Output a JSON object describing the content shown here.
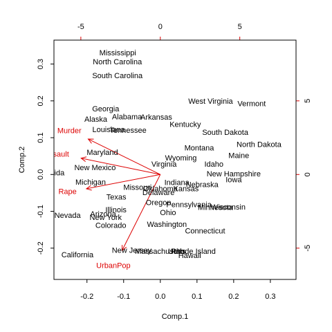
{
  "chart_data": {
    "type": "scatter",
    "subtype": "pca-biplot",
    "title": "",
    "xlabel": "Comp.1",
    "ylabel": "Comp.2",
    "xlim": [
      -0.29,
      0.37
    ],
    "ylim": [
      -0.285,
      0.365
    ],
    "x_ticks": [
      -0.2,
      -0.1,
      0.0,
      0.1,
      0.2,
      0.3
    ],
    "x_tick_labels": [
      "-0.2",
      "-0.1",
      "0.0",
      "0.1",
      "0.2",
      "0.3"
    ],
    "y_ticks": [
      -0.2,
      -0.1,
      0.0,
      0.1,
      0.2,
      0.3
    ],
    "y_tick_labels": [
      "-0.2",
      "-0.1",
      "0.0",
      "0.1",
      "0.2",
      "0.3"
    ],
    "secondary_axes": {
      "color": "#dd0000",
      "x_top_ticks": [
        -0.21667,
        0.0,
        0.21667
      ],
      "x_top_labels": [
        "-5",
        "0",
        "5"
      ],
      "y_right_ticks": [
        -0.2,
        0.0,
        0.2
      ],
      "y_right_labels": [
        "-5",
        "0",
        "5"
      ]
    },
    "grid": false,
    "observation_color": "#000000",
    "loading_color": "#dd0000",
    "observations": [
      {
        "label": "Mississippi",
        "x": -0.116,
        "y": 0.329
      },
      {
        "label": "North Carolina",
        "x": -0.117,
        "y": 0.305
      },
      {
        "label": "South Carolina",
        "x": -0.117,
        "y": 0.267
      },
      {
        "label": "West Virginia",
        "x": 0.137,
        "y": 0.198
      },
      {
        "label": "Vermont",
        "x": 0.249,
        "y": 0.191
      },
      {
        "label": "Georgia",
        "x": -0.149,
        "y": 0.177
      },
      {
        "label": "Alabama",
        "x": -0.091,
        "y": 0.155
      },
      {
        "label": "Arkansas",
        "x": -0.011,
        "y": 0.154
      },
      {
        "label": "Alaska",
        "x": -0.176,
        "y": 0.149
      },
      {
        "label": "Kentucky",
        "x": 0.068,
        "y": 0.135
      },
      {
        "label": "Louisiana",
        "x": -0.141,
        "y": 0.121
      },
      {
        "label": "Tennessee",
        "x": -0.088,
        "y": 0.119
      },
      {
        "label": "South Dakota",
        "x": 0.177,
        "y": 0.113
      },
      {
        "label": "North Dakota",
        "x": 0.269,
        "y": 0.08
      },
      {
        "label": "Montana",
        "x": 0.106,
        "y": 0.071
      },
      {
        "label": "Maine",
        "x": 0.214,
        "y": 0.05
      },
      {
        "label": "Maryland",
        "x": -0.158,
        "y": 0.059
      },
      {
        "label": "Wyoming",
        "x": 0.056,
        "y": 0.044
      },
      {
        "label": "Virginia",
        "x": 0.01,
        "y": 0.027
      },
      {
        "label": "Idaho",
        "x": 0.146,
        "y": 0.027
      },
      {
        "label": "New Mexico",
        "x": -0.178,
        "y": 0.017
      },
      {
        "label": "Florida",
        "x": -0.293,
        "y": 0.003
      },
      {
        "label": "New Hampshire",
        "x": 0.2,
        "y": 0.0
      },
      {
        "label": "Iowa",
        "x": 0.2,
        "y": -0.016
      },
      {
        "label": "Michigan",
        "x": -0.19,
        "y": -0.022
      },
      {
        "label": "Indiana",
        "x": 0.045,
        "y": -0.023
      },
      {
        "label": "Nebraska",
        "x": 0.114,
        "y": -0.029
      },
      {
        "label": "Missouri",
        "x": -0.062,
        "y": -0.036
      },
      {
        "label": "Oklahoma",
        "x": 0.0,
        "y": -0.04
      },
      {
        "label": "Kansas",
        "x": 0.07,
        "y": -0.04
      },
      {
        "label": "Delaware",
        "x": -0.005,
        "y": -0.05
      },
      {
        "label": "Texas",
        "x": -0.12,
        "y": -0.063
      },
      {
        "label": "Oregon",
        "x": -0.005,
        "y": -0.078
      },
      {
        "label": "Pennsylvania",
        "x": 0.078,
        "y": -0.083
      },
      {
        "label": "Wisconsin",
        "x": 0.185,
        "y": -0.09
      },
      {
        "label": "Minnesota",
        "x": 0.15,
        "y": -0.091
      },
      {
        "label": "Illinois",
        "x": -0.121,
        "y": -0.097
      },
      {
        "label": "Ohio",
        "x": 0.021,
        "y": -0.105
      },
      {
        "label": "Arizona",
        "x": -0.156,
        "y": -0.109
      },
      {
        "label": "Nevada",
        "x": -0.253,
        "y": -0.112
      },
      {
        "label": "New York",
        "x": -0.149,
        "y": -0.118
      },
      {
        "label": "Colorado",
        "x": -0.135,
        "y": -0.14
      },
      {
        "label": "Washington",
        "x": 0.018,
        "y": -0.137
      },
      {
        "label": "Connecticut",
        "x": 0.122,
        "y": -0.155
      },
      {
        "label": "New Jersey",
        "x": -0.078,
        "y": -0.207
      },
      {
        "label": "Massachusetts",
        "x": 0.0,
        "y": -0.21
      },
      {
        "label": "Rhode Island",
        "x": 0.09,
        "y": -0.21
      },
      {
        "label": "Utah",
        "x": 0.043,
        "y": -0.21
      },
      {
        "label": "Hawaii",
        "x": 0.08,
        "y": -0.221
      },
      {
        "label": "California",
        "x": -0.226,
        "y": -0.219
      }
    ],
    "loadings": [
      {
        "label": "Murder",
        "x": -0.1966,
        "y": 0.0963,
        "label_x": -0.248,
        "label_y": 0.118
      },
      {
        "label": "Assault",
        "x": -0.2159,
        "y": 0.0443,
        "label_x": -0.283,
        "label_y": 0.054
      },
      {
        "label": "Rape",
        "x": -0.2015,
        "y": -0.0388,
        "label_x": -0.253,
        "label_y": -0.048
      },
      {
        "label": "UrbanPop",
        "x": -0.1043,
        "y": -0.2063,
        "label_x": -0.128,
        "label_y": -0.249
      }
    ]
  }
}
